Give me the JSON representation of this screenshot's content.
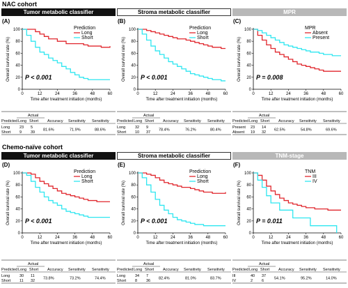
{
  "cohorts": [
    {
      "title": "NAC cohort"
    },
    {
      "title": "Chemo-naïve cohort"
    }
  ],
  "colors": {
    "red": "#e0262c",
    "cyan": "#2ee6f0",
    "black_header": "#111111",
    "grey_header": "#b8b8b8"
  },
  "panels": [
    {
      "letter": "(A)",
      "header": "Tumor metabolic classifier",
      "header_style": "black",
      "legend_title": "Prediction",
      "legend": [
        "Long",
        "Short"
      ],
      "pvalue": "P < 0.001"
    },
    {
      "letter": "(B)",
      "header": "Stroma metabolic classifier",
      "header_style": "white",
      "legend_title": "Prediction",
      "legend": [
        "Long",
        "Short"
      ],
      "pvalue": "P < 0.001"
    },
    {
      "letter": "(C)",
      "header": "MPR",
      "header_style": "grey",
      "legend_title": "MPR",
      "legend": [
        "Absent",
        "Present"
      ],
      "pvalue": "P = 0.008"
    },
    {
      "letter": "(D)",
      "header": "Tumor metabolic classifier",
      "header_style": "black",
      "legend_title": "Prediction",
      "legend": [
        "Long",
        "Short"
      ],
      "pvalue": "P < 0.001"
    },
    {
      "letter": "(E)",
      "header": "Stroma metabolic classifier",
      "header_style": "white",
      "legend_title": "Prediction",
      "legend": [
        "Long",
        "Short"
      ],
      "pvalue": "P < 0.001"
    },
    {
      "letter": "(F)",
      "header": "TNM-stage",
      "header_style": "grey",
      "legend_title": "TNM",
      "legend": [
        "III",
        "IV"
      ],
      "pvalue": "P = 0.011"
    }
  ],
  "tables": [
    {
      "rows": [
        [
          "Long",
          "23",
          "5"
        ],
        [
          "Short",
          "9",
          "39"
        ]
      ],
      "acc": "81.6%",
      "sens": "71.9%",
      "spec": "88.6%"
    },
    {
      "rows": [
        [
          "Long",
          "32",
          "9"
        ],
        [
          "Short",
          "10",
          "37"
        ]
      ],
      "acc": "78.4%",
      "sens": "76.2%",
      "spec": "80.4%"
    },
    {
      "rows": [
        [
          "Present",
          "23",
          "14"
        ],
        [
          "Absent",
          "19",
          "32"
        ]
      ],
      "acc": "62.5%",
      "sens": "54.8%",
      "spec": "69.6%"
    },
    {
      "rows": [
        [
          "Long",
          "30",
          "11"
        ],
        [
          "Short",
          "11",
          "32"
        ]
      ],
      "acc": "73.8%",
      "sens": "73.2%",
      "spec": "74.4%"
    },
    {
      "rows": [
        [
          "Long",
          "34",
          "7"
        ],
        [
          "Short",
          "8",
          "36"
        ]
      ],
      "acc": "82.4%",
      "sens": "81.0%",
      "spec": "83.7%"
    },
    {
      "rows": [
        [
          "III",
          "40",
          "37"
        ],
        [
          "IV",
          "2",
          "6"
        ]
      ],
      "acc": "54.1%",
      "sens": "95.2%",
      "spec": "14.0%"
    }
  ],
  "table_labels": {
    "predicted": "Predicted",
    "actual": "Actual",
    "long": "Long",
    "short": "Short",
    "accuracy": "Accuracy",
    "sensitivity": "Sensitivity"
  },
  "chart_data": [
    {
      "type": "line",
      "panel": "A",
      "title": "Tumor metabolic classifier",
      "xlabel": "Time after treatment initiation (months)",
      "ylabel": "Overall survival rate (%)",
      "xlim": [
        0,
        60
      ],
      "ylim": [
        0,
        100
      ],
      "xticks": [
        0,
        12,
        24,
        36,
        48,
        60
      ],
      "yticks": [
        0,
        20,
        40,
        60,
        80,
        100
      ],
      "series": [
        {
          "name": "Long",
          "color": "#e0262c",
          "x": [
            0,
            3,
            6,
            9,
            12,
            15,
            18,
            21,
            24,
            27,
            30,
            33,
            36,
            39,
            42,
            45,
            48,
            51,
            54,
            57,
            60
          ],
          "y": [
            100,
            100,
            100,
            96,
            92,
            88,
            84,
            84,
            80,
            80,
            76,
            76,
            76,
            76,
            74,
            72,
            72,
            72,
            70,
            70,
            72
          ]
        },
        {
          "name": "Short",
          "color": "#2ee6f0",
          "x": [
            0,
            3,
            6,
            9,
            12,
            15,
            18,
            21,
            24,
            27,
            30,
            33,
            36,
            39,
            42,
            45,
            48,
            51,
            54,
            57,
            60
          ],
          "y": [
            100,
            90,
            80,
            70,
            62,
            58,
            52,
            48,
            44,
            38,
            34,
            28,
            24,
            20,
            18,
            16,
            16,
            16,
            16,
            16,
            16
          ]
        }
      ]
    },
    {
      "type": "line",
      "panel": "B",
      "title": "Stroma metabolic classifier",
      "xlabel": "Time after treatment initiation (months)",
      "ylabel": "Overall survival rate (%)",
      "xlim": [
        0,
        60
      ],
      "ylim": [
        0,
        100
      ],
      "xticks": [
        0,
        12,
        24,
        36,
        48,
        60
      ],
      "yticks": [
        0,
        20,
        40,
        60,
        80,
        100
      ],
      "series": [
        {
          "name": "Long",
          "color": "#e0262c",
          "x": [
            0,
            3,
            6,
            9,
            12,
            15,
            18,
            21,
            24,
            27,
            30,
            33,
            36,
            39,
            42,
            45,
            48,
            51,
            54,
            57,
            60
          ],
          "y": [
            100,
            100,
            98,
            96,
            94,
            92,
            90,
            88,
            86,
            84,
            84,
            82,
            80,
            78,
            76,
            74,
            72,
            70,
            70,
            68,
            68
          ]
        },
        {
          "name": "Short",
          "color": "#2ee6f0",
          "x": [
            0,
            3,
            6,
            9,
            12,
            15,
            18,
            21,
            24,
            27,
            30,
            33,
            36,
            39,
            42,
            45,
            48,
            51,
            54,
            57,
            60
          ],
          "y": [
            100,
            92,
            82,
            72,
            64,
            58,
            52,
            46,
            42,
            38,
            34,
            30,
            26,
            24,
            22,
            20,
            18,
            16,
            16,
            14,
            14
          ]
        }
      ]
    },
    {
      "type": "line",
      "panel": "C",
      "title": "MPR",
      "xlabel": "Time after treatment initiation (months)",
      "ylabel": "Overall survival rate (%)",
      "xlim": [
        0,
        60
      ],
      "ylim": [
        0,
        100
      ],
      "xticks": [
        0,
        12,
        24,
        36,
        48,
        60
      ],
      "yticks": [
        0,
        20,
        40,
        60,
        80,
        100
      ],
      "series": [
        {
          "name": "Absent",
          "color": "#e0262c",
          "x": [
            0,
            3,
            6,
            9,
            12,
            15,
            18,
            21,
            24,
            27,
            30,
            33,
            36,
            39,
            42,
            45,
            48,
            51,
            54,
            57,
            60
          ],
          "y": [
            100,
            90,
            82,
            74,
            68,
            62,
            58,
            54,
            50,
            46,
            42,
            40,
            38,
            36,
            34,
            32,
            30,
            30,
            30,
            30,
            30
          ]
        },
        {
          "name": "Present",
          "color": "#2ee6f0",
          "x": [
            0,
            3,
            6,
            9,
            12,
            15,
            18,
            21,
            24,
            27,
            30,
            33,
            36,
            39,
            42,
            45,
            48,
            51,
            54,
            57,
            60
          ],
          "y": [
            100,
            98,
            94,
            90,
            86,
            82,
            78,
            74,
            72,
            70,
            68,
            66,
            64,
            62,
            62,
            60,
            58,
            58,
            56,
            56,
            56
          ]
        }
      ]
    },
    {
      "type": "line",
      "panel": "D",
      "title": "Tumor metabolic classifier",
      "xlabel": "Time after treatment initiation (months)",
      "ylabel": "Overall survival rate (%)",
      "xlim": [
        0,
        60
      ],
      "ylim": [
        0,
        100
      ],
      "xticks": [
        0,
        12,
        24,
        36,
        48,
        60
      ],
      "yticks": [
        0,
        20,
        40,
        60,
        80,
        100
      ],
      "series": [
        {
          "name": "Long",
          "color": "#e0262c",
          "x": [
            0,
            3,
            6,
            9,
            12,
            15,
            18,
            21,
            24,
            27,
            30,
            33,
            36,
            39,
            42,
            45,
            48,
            51,
            54,
            57,
            60
          ],
          "y": [
            100,
            100,
            98,
            92,
            86,
            82,
            78,
            74,
            70,
            66,
            64,
            62,
            60,
            58,
            56,
            54,
            54,
            52,
            52,
            52,
            52
          ]
        },
        {
          "name": "Short",
          "color": "#2ee6f0",
          "x": [
            0,
            3,
            6,
            9,
            12,
            15,
            18,
            21,
            24,
            27,
            30,
            33,
            36,
            39,
            42,
            45,
            48,
            51,
            54,
            57,
            60
          ],
          "y": [
            100,
            96,
            86,
            76,
            68,
            60,
            54,
            50,
            46,
            40,
            36,
            34,
            32,
            30,
            28,
            26,
            26,
            26,
            26,
            26,
            26
          ]
        }
      ]
    },
    {
      "type": "line",
      "panel": "E",
      "title": "Stroma metabolic classifier",
      "xlabel": "Time after treatment initiation (months)",
      "ylabel": "Overall survival rate (%)",
      "xlim": [
        0,
        60
      ],
      "ylim": [
        0,
        100
      ],
      "xticks": [
        0,
        12,
        24,
        36,
        48,
        60
      ],
      "yticks": [
        0,
        20,
        40,
        60,
        80,
        100
      ],
      "series": [
        {
          "name": "Long",
          "color": "#e0262c",
          "x": [
            0,
            3,
            6,
            9,
            12,
            15,
            18,
            21,
            24,
            27,
            30,
            33,
            36,
            39,
            42,
            45,
            48,
            51,
            54,
            57,
            60
          ],
          "y": [
            100,
            100,
            98,
            96,
            92,
            88,
            84,
            82,
            80,
            78,
            76,
            76,
            74,
            72,
            70,
            68,
            68,
            66,
            66,
            66,
            68
          ]
        },
        {
          "name": "Short",
          "color": "#2ee6f0",
          "x": [
            0,
            3,
            6,
            9,
            12,
            15,
            18,
            21,
            24,
            27,
            30,
            33,
            36,
            39,
            42,
            45,
            48,
            51,
            54,
            57,
            60
          ],
          "y": [
            100,
            92,
            80,
            68,
            56,
            46,
            38,
            32,
            26,
            22,
            20,
            18,
            16,
            14,
            14,
            12,
            12,
            12,
            12,
            12,
            12
          ]
        }
      ]
    },
    {
      "type": "line",
      "panel": "F",
      "title": "TNM-stage",
      "xlabel": "Time after treatment initiation (months)",
      "ylabel": "Overall survival rate (%)",
      "xlim": [
        0,
        60
      ],
      "ylim": [
        0,
        100
      ],
      "xticks": [
        0,
        12,
        24,
        36,
        48,
        60
      ],
      "yticks": [
        0,
        20,
        40,
        60,
        80,
        100
      ],
      "series": [
        {
          "name": "III",
          "color": "#e0262c",
          "x": [
            0,
            3,
            6,
            9,
            12,
            15,
            18,
            21,
            24,
            27,
            30,
            33,
            36,
            39,
            42,
            45,
            48,
            51,
            54,
            57,
            60
          ],
          "y": [
            100,
            96,
            88,
            78,
            70,
            64,
            58,
            54,
            50,
            48,
            46,
            44,
            42,
            42,
            40,
            40,
            40,
            38,
            38,
            38,
            38
          ]
        },
        {
          "name": "IV",
          "color": "#2ee6f0",
          "x": [
            0,
            3,
            6,
            9,
            12,
            15,
            18,
            21,
            24,
            27,
            30,
            33,
            36,
            39,
            42,
            45,
            48,
            51,
            54,
            56,
            57
          ],
          "y": [
            100,
            88,
            76,
            62,
            50,
            50,
            38,
            38,
            38,
            25,
            25,
            25,
            25,
            12,
            12,
            12,
            12,
            12,
            12,
            12,
            0
          ]
        }
      ]
    }
  ]
}
